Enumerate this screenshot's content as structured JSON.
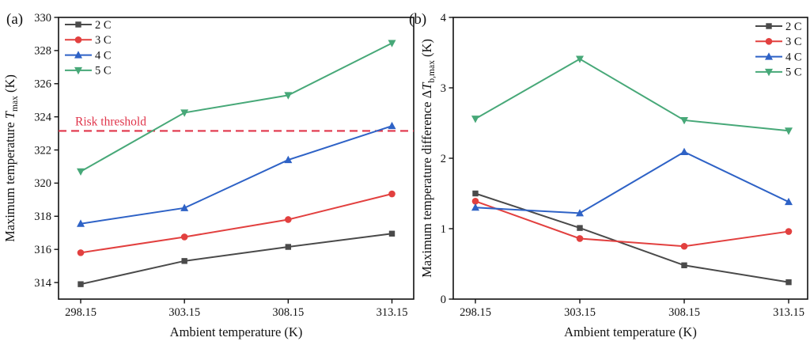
{
  "figure": {
    "background": "#ffffff",
    "axis_color": "#111111"
  },
  "chart_data": [
    {
      "type": "line",
      "panel_label": "(a)",
      "xlabel": "Ambient temperature (K)",
      "ylabel": "Maximum temperature Tmax (K)",
      "ylabel_parts": [
        {
          "t": "Maximum temperature "
        },
        {
          "t": "T",
          "italic": true
        },
        {
          "t": "max",
          "sub": true
        },
        {
          "t": " (K)"
        }
      ],
      "x": [
        298.15,
        303.15,
        308.15,
        313.15
      ],
      "x_tick_labels": [
        "298.15",
        "303.15",
        "308.15",
        "313.15"
      ],
      "ylim": [
        313,
        330
      ],
      "y_ticks": [
        314,
        316,
        318,
        320,
        322,
        324,
        326,
        328,
        330
      ],
      "grid": false,
      "legend_position": "top-left",
      "series": [
        {
          "name": "2 C",
          "color": "#4a4a4a",
          "marker": "square",
          "values": [
            313.9,
            315.3,
            316.15,
            316.95
          ]
        },
        {
          "name": "3 C",
          "color": "#e2403f",
          "marker": "circle",
          "values": [
            315.8,
            316.75,
            317.8,
            319.35
          ]
        },
        {
          "name": "4 C",
          "color": "#2e62c6",
          "marker": "triangle-up",
          "values": [
            317.55,
            318.5,
            321.4,
            323.45
          ]
        },
        {
          "name": "5 C",
          "color": "#47a878",
          "marker": "triangle-down",
          "values": [
            320.7,
            324.25,
            325.3,
            328.45
          ]
        }
      ],
      "threshold": {
        "value": 323.15,
        "label": "Risk threshold",
        "color": "#e0344a",
        "line_style": "dashed"
      }
    },
    {
      "type": "line",
      "panel_label": "(b)",
      "xlabel": "Ambient temperature (K)",
      "ylabel": "Maximum temperature difference ΔTb,max (K)",
      "ylabel_parts": [
        {
          "t": "Maximum temperature difference Δ"
        },
        {
          "t": "T",
          "italic": true
        },
        {
          "t": "b,max",
          "sub": true
        },
        {
          "t": " (K)"
        }
      ],
      "x": [
        298.15,
        303.15,
        308.15,
        313.15
      ],
      "x_tick_labels": [
        "298.15",
        "303.15",
        "308.15",
        "313.15"
      ],
      "ylim": [
        0,
        4
      ],
      "y_ticks": [
        0,
        1,
        2,
        3,
        4
      ],
      "grid": false,
      "legend_position": "top-right",
      "series": [
        {
          "name": "2 C",
          "color": "#4a4a4a",
          "marker": "square",
          "values": [
            1.5,
            1.01,
            0.48,
            0.24
          ]
        },
        {
          "name": "3 C",
          "color": "#e2403f",
          "marker": "circle",
          "values": [
            1.39,
            0.86,
            0.75,
            0.96
          ]
        },
        {
          "name": "4 C",
          "color": "#2e62c6",
          "marker": "triangle-up",
          "values": [
            1.3,
            1.22,
            2.09,
            1.38
          ]
        },
        {
          "name": "5 C",
          "color": "#47a878",
          "marker": "triangle-down",
          "values": [
            2.56,
            3.41,
            2.54,
            2.39
          ]
        }
      ]
    }
  ]
}
